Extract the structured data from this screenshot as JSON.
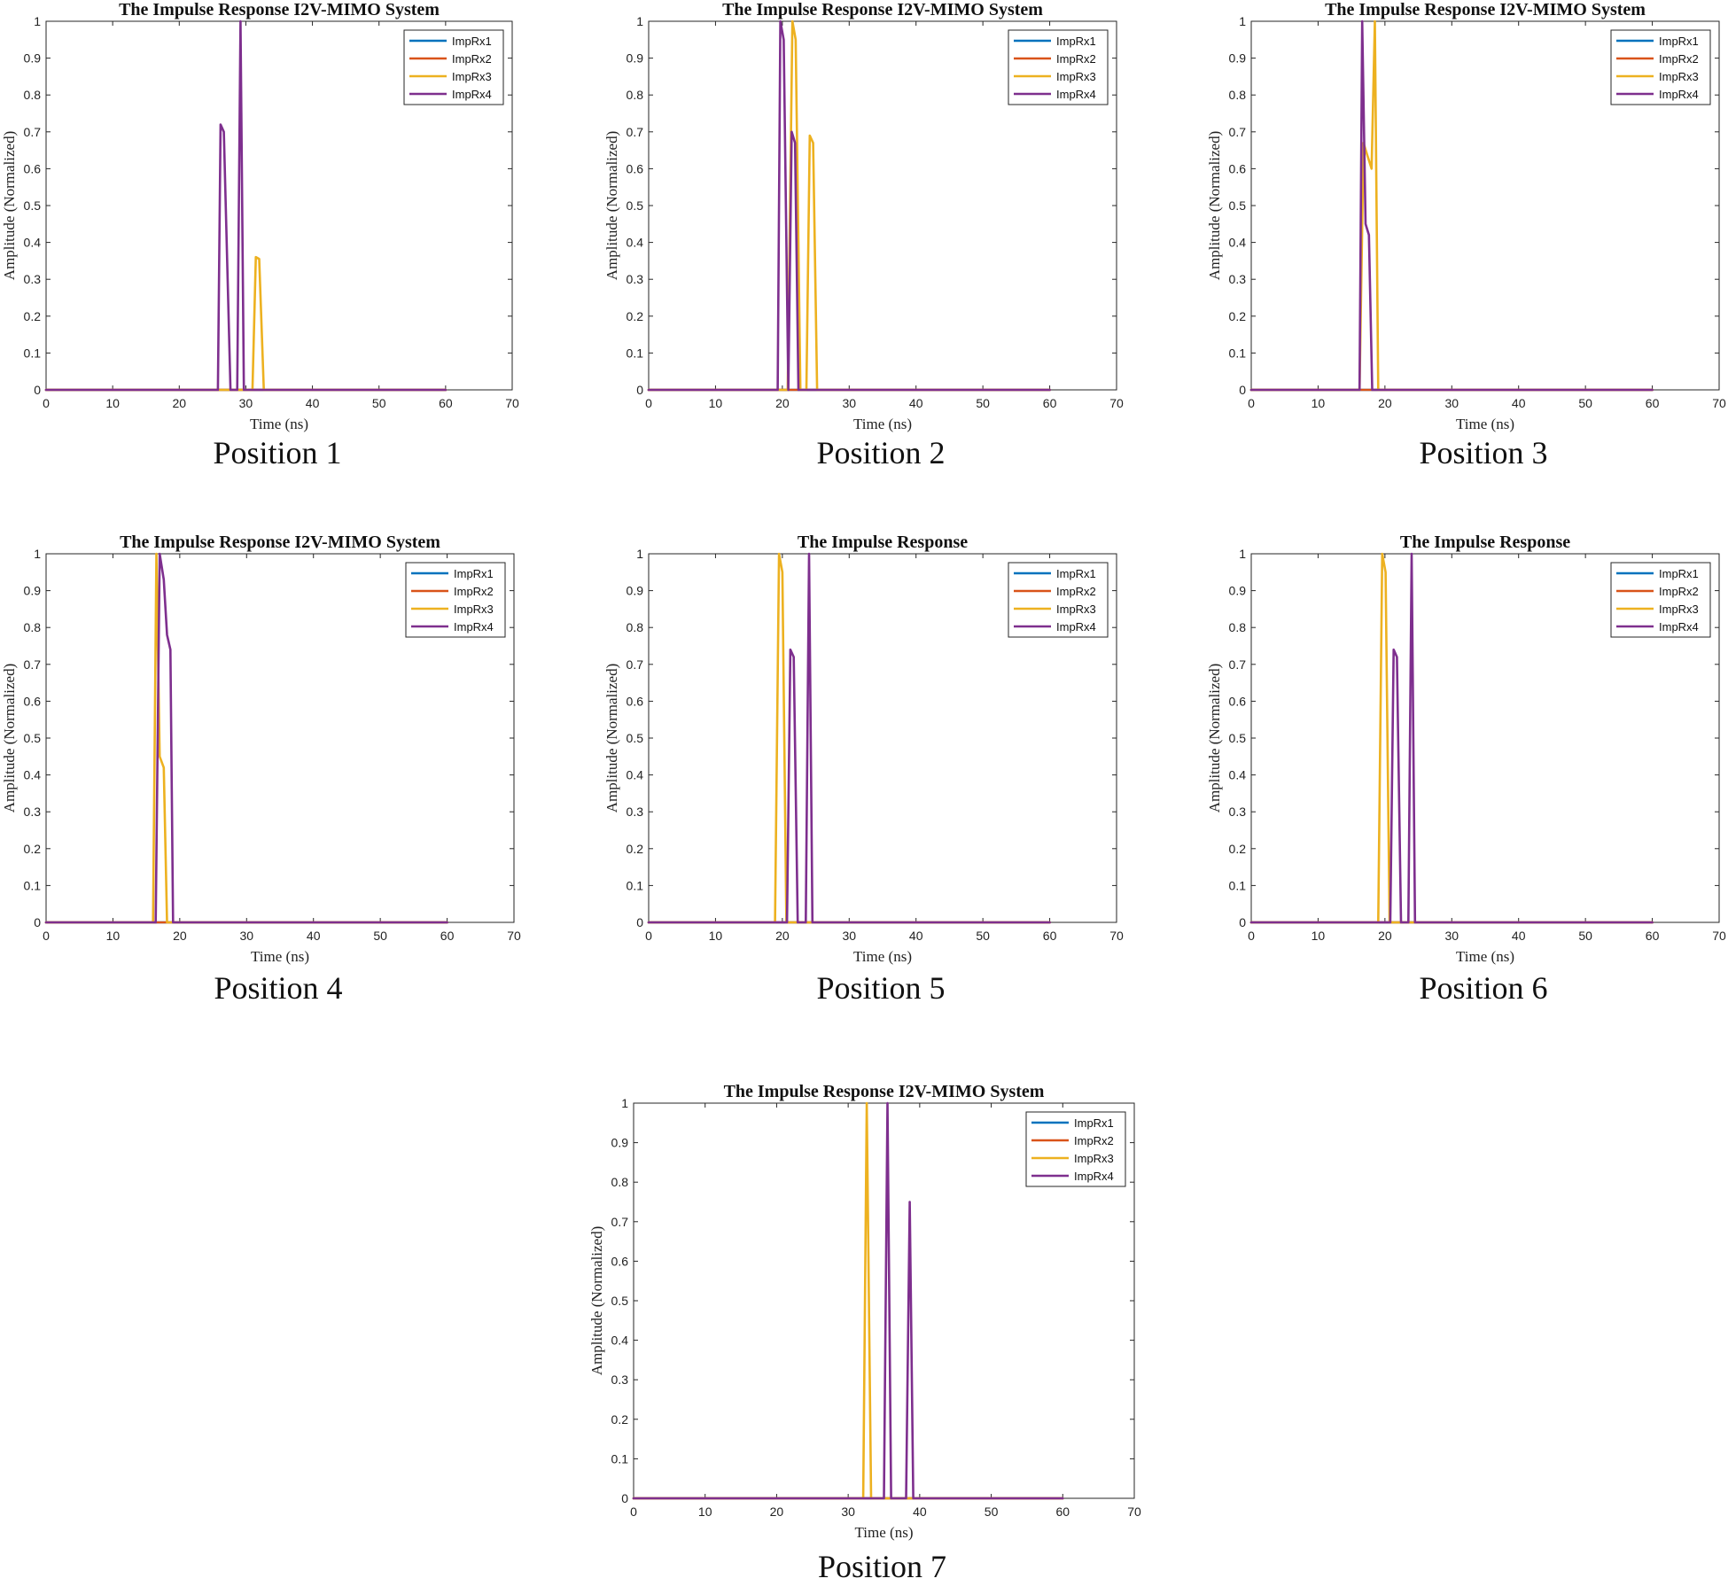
{
  "colors": {
    "ImpRx1": "#0072BD",
    "ImpRx2": "#D95319",
    "ImpRx3": "#EDB120",
    "ImpRx4": "#7E2F8E"
  },
  "chart_data": [
    {
      "type": "line",
      "caption": "Position 1",
      "title": "The Impulse Response I2V-MIMO System",
      "xlabel": "Time (ns)",
      "ylabel": "Amplitude (Normalized)",
      "xlim": [
        0,
        70
      ],
      "ylim": [
        0,
        1
      ],
      "xticks": [
        0,
        10,
        20,
        30,
        40,
        50,
        60,
        70
      ],
      "yticks": [
        0,
        0.1,
        0.2,
        0.3,
        0.4,
        0.5,
        0.6,
        0.7,
        0.8,
        0.9,
        1
      ],
      "legend_loc": "top-right",
      "series": [
        {
          "name": "ImpRx1",
          "x": [
            0,
            60
          ],
          "y": [
            0,
            0
          ]
        },
        {
          "name": "ImpRx2",
          "x": [
            0,
            60
          ],
          "y": [
            0,
            0
          ]
        },
        {
          "name": "ImpRx3",
          "x": [
            0,
            31.0,
            31.5,
            32.0,
            32.7,
            60
          ],
          "y": [
            0,
            0,
            0.36,
            0.355,
            0,
            0
          ]
        },
        {
          "name": "ImpRx4",
          "x": [
            0,
            25.8,
            26.2,
            26.7,
            27.7,
            28.7,
            29.2,
            29.7,
            60
          ],
          "y": [
            0,
            0,
            0.72,
            0.7,
            0,
            0,
            1.0,
            0,
            0
          ]
        }
      ]
    },
    {
      "type": "line",
      "caption": "Position 2",
      "title": "The Impulse Response I2V-MIMO System",
      "xlabel": "Time (ns)",
      "ylabel": "Amplitude (Normalized)",
      "xlim": [
        0,
        70
      ],
      "ylim": [
        0,
        1
      ],
      "xticks": [
        0,
        10,
        20,
        30,
        40,
        50,
        60,
        70
      ],
      "yticks": [
        0,
        0.1,
        0.2,
        0.3,
        0.4,
        0.5,
        0.6,
        0.7,
        0.8,
        0.9,
        1
      ],
      "legend_loc": "top-right",
      "series": [
        {
          "name": "ImpRx1",
          "x": [
            0,
            60
          ],
          "y": [
            0,
            0
          ]
        },
        {
          "name": "ImpRx2",
          "x": [
            0,
            60
          ],
          "y": [
            0,
            0
          ]
        },
        {
          "name": "ImpRx3",
          "x": [
            0,
            20.8,
            21.5,
            22.0,
            22.7,
            23.6,
            24.1,
            24.6,
            25.2,
            60
          ],
          "y": [
            0,
            0,
            1.0,
            0.95,
            0,
            0,
            0.69,
            0.67,
            0,
            0
          ]
        },
        {
          "name": "ImpRx4",
          "x": [
            0,
            19.3,
            19.7,
            20.2,
            20.9,
            21.4,
            21.9,
            22.4,
            60
          ],
          "y": [
            0,
            0,
            1.0,
            0.95,
            0,
            0.7,
            0.67,
            0,
            0
          ]
        }
      ]
    },
    {
      "type": "line",
      "caption": "Position 3",
      "title": "The Impulse Response I2V-MIMO System",
      "xlabel": "Time (ns)",
      "ylabel": "Amplitude (Normalized)",
      "xlim": [
        0,
        70
      ],
      "ylim": [
        0,
        1
      ],
      "xticks": [
        0,
        10,
        20,
        30,
        40,
        50,
        60,
        70
      ],
      "yticks": [
        0,
        0.1,
        0.2,
        0.3,
        0.4,
        0.5,
        0.6,
        0.7,
        0.8,
        0.9,
        1
      ],
      "legend_loc": "top-right",
      "series": [
        {
          "name": "ImpRx1",
          "x": [
            0,
            60
          ],
          "y": [
            0,
            0
          ]
        },
        {
          "name": "ImpRx2",
          "x": [
            0,
            60
          ],
          "y": [
            0,
            0
          ]
        },
        {
          "name": "ImpRx3",
          "x": [
            0,
            16.2,
            16.8,
            17.3,
            18.0,
            18.5,
            19.0,
            60
          ],
          "y": [
            0,
            0,
            0.67,
            0.64,
            0.6,
            1.0,
            0,
            0
          ]
        },
        {
          "name": "ImpRx4",
          "x": [
            0,
            16.2,
            16.6,
            17.1,
            17.6,
            18.1,
            60
          ],
          "y": [
            0,
            0,
            1.0,
            0.45,
            0.42,
            0,
            0
          ]
        }
      ]
    },
    {
      "type": "line",
      "caption": "Position 4",
      "title": "The Impulse Response I2V-MIMO System",
      "xlabel": "Time (ns)",
      "ylabel": "Amplitude (Normalized)",
      "xlim": [
        0,
        70
      ],
      "ylim": [
        0,
        1
      ],
      "xticks": [
        0,
        10,
        20,
        30,
        40,
        50,
        60,
        70
      ],
      "yticks": [
        0,
        0.1,
        0.2,
        0.3,
        0.4,
        0.5,
        0.6,
        0.7,
        0.8,
        0.9,
        1
      ],
      "legend_loc": "top-right",
      "series": [
        {
          "name": "ImpRx1",
          "x": [
            0,
            60
          ],
          "y": [
            0,
            0
          ]
        },
        {
          "name": "ImpRx2",
          "x": [
            0,
            60
          ],
          "y": [
            0,
            0
          ]
        },
        {
          "name": "ImpRx3",
          "x": [
            0,
            16.0,
            16.5,
            17.0,
            17.6,
            18.1,
            60
          ],
          "y": [
            0,
            0,
            1.0,
            0.45,
            0.42,
            0,
            0
          ]
        },
        {
          "name": "ImpRx4",
          "x": [
            0,
            16.4,
            17.0,
            17.6,
            18.1,
            18.6,
            19.0,
            60
          ],
          "y": [
            0,
            0,
            1.0,
            0.93,
            0.78,
            0.74,
            0,
            0
          ]
        }
      ]
    },
    {
      "type": "line",
      "caption": "Position 5",
      "title": "The Impulse Response",
      "xlabel": "Time (ns)",
      "ylabel": "Amplitude (Normalized)",
      "xlim": [
        0,
        70
      ],
      "ylim": [
        0,
        1
      ],
      "xticks": [
        0,
        10,
        20,
        30,
        40,
        50,
        60,
        70
      ],
      "yticks": [
        0,
        0.1,
        0.2,
        0.3,
        0.4,
        0.5,
        0.6,
        0.7,
        0.8,
        0.9,
        1
      ],
      "legend_loc": "top-right",
      "series": [
        {
          "name": "ImpRx1",
          "x": [
            0,
            60
          ],
          "y": [
            0,
            0
          ]
        },
        {
          "name": "ImpRx2",
          "x": [
            0,
            60
          ],
          "y": [
            0,
            0
          ]
        },
        {
          "name": "ImpRx3",
          "x": [
            0,
            18.9,
            19.5,
            20.0,
            20.6,
            60
          ],
          "y": [
            0,
            0,
            1.0,
            0.95,
            0,
            0
          ]
        },
        {
          "name": "ImpRx4",
          "x": [
            0,
            20.7,
            21.2,
            21.7,
            22.3,
            23.5,
            24.0,
            24.5,
            60
          ],
          "y": [
            0,
            0,
            0.74,
            0.72,
            0,
            0,
            1.0,
            0,
            0
          ]
        }
      ]
    },
    {
      "type": "line",
      "caption": "Position 6",
      "title": "The Impulse Response",
      "xlabel": "Time (ns)",
      "ylabel": "Amplitude (Normalized)",
      "xlim": [
        0,
        70
      ],
      "ylim": [
        0,
        1
      ],
      "xticks": [
        0,
        10,
        20,
        30,
        40,
        50,
        60,
        70
      ],
      "yticks": [
        0,
        0.1,
        0.2,
        0.3,
        0.4,
        0.5,
        0.6,
        0.7,
        0.8,
        0.9,
        1
      ],
      "legend_loc": "top-right",
      "series": [
        {
          "name": "ImpRx1",
          "x": [
            0,
            60
          ],
          "y": [
            0,
            0
          ]
        },
        {
          "name": "ImpRx2",
          "x": [
            0,
            60
          ],
          "y": [
            0,
            0
          ]
        },
        {
          "name": "ImpRx3",
          "x": [
            0,
            19.0,
            19.6,
            20.1,
            20.7,
            60
          ],
          "y": [
            0,
            0,
            1.0,
            0.95,
            0,
            0
          ]
        },
        {
          "name": "ImpRx4",
          "x": [
            0,
            20.8,
            21.3,
            21.8,
            22.4,
            23.5,
            24.0,
            24.5,
            60
          ],
          "y": [
            0,
            0,
            0.74,
            0.72,
            0,
            0,
            1.0,
            0,
            0
          ]
        }
      ]
    },
    {
      "type": "line",
      "caption": "Position 7",
      "title": "The Impulse Response I2V-MIMO System",
      "xlabel": "Time (ns)",
      "ylabel": "Amplitude (Normalized)",
      "xlim": [
        0,
        70
      ],
      "ylim": [
        0,
        1
      ],
      "xticks": [
        0,
        10,
        20,
        30,
        40,
        50,
        60,
        70
      ],
      "yticks": [
        0,
        0.1,
        0.2,
        0.3,
        0.4,
        0.5,
        0.6,
        0.7,
        0.8,
        0.9,
        1
      ],
      "legend_loc": "top-right",
      "series": [
        {
          "name": "ImpRx1",
          "x": [
            0,
            60
          ],
          "y": [
            0,
            0
          ]
        },
        {
          "name": "ImpRx2",
          "x": [
            0,
            60
          ],
          "y": [
            0,
            0
          ]
        },
        {
          "name": "ImpRx3",
          "x": [
            0,
            32.1,
            32.6,
            33.2,
            60
          ],
          "y": [
            0,
            0,
            1.0,
            0,
            0
          ]
        },
        {
          "name": "ImpRx4",
          "x": [
            0,
            35.0,
            35.5,
            36.0,
            38.1,
            38.6,
            39.1,
            60
          ],
          "y": [
            0,
            0,
            1.0,
            0,
            0,
            0.75,
            0,
            0
          ]
        }
      ]
    }
  ]
}
